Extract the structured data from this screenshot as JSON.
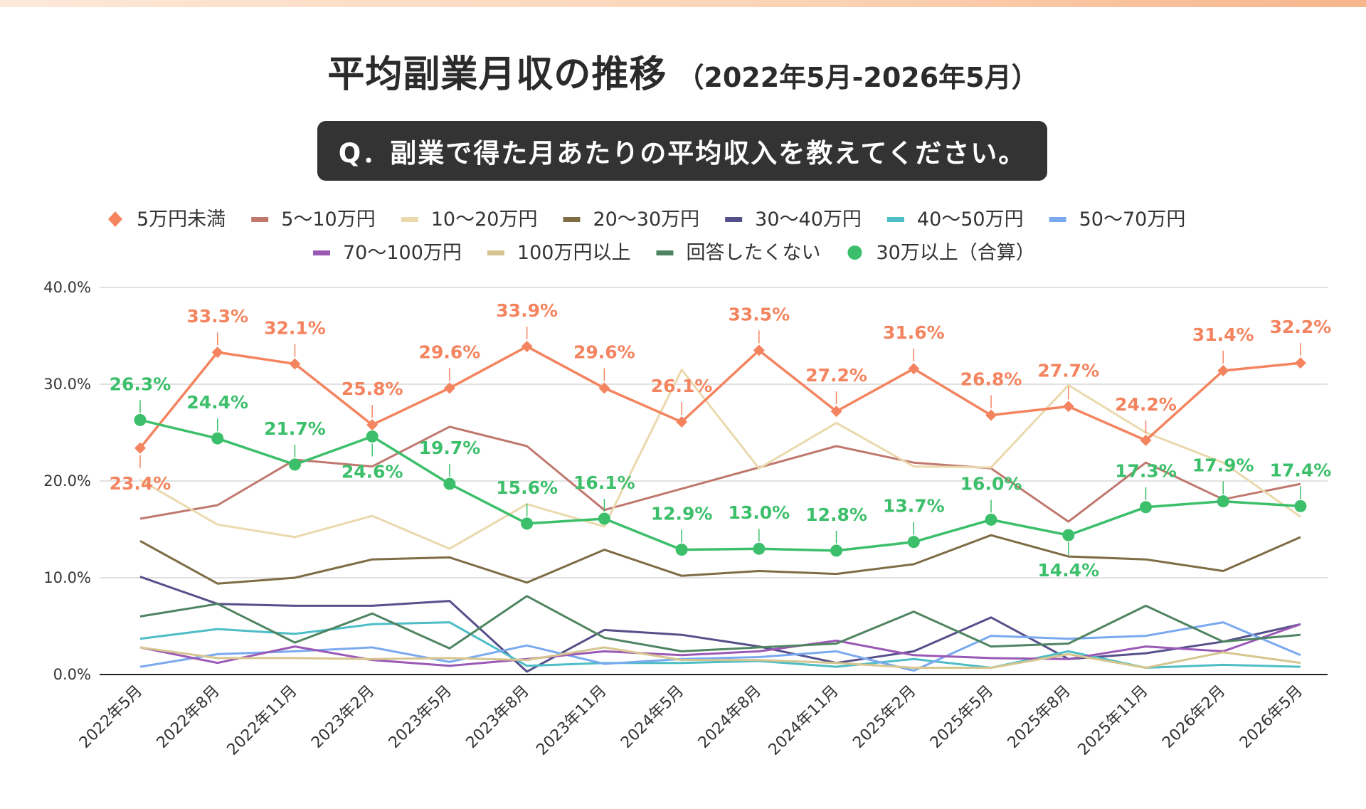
{
  "title": {
    "main": "平均副業月収の推移",
    "sub": "（2022年5月-2026年5月）"
  },
  "question": "Q．副業で得た月あたりの平均収入を教えてください。",
  "chart_data": {
    "type": "line",
    "categories": [
      "2022年5月",
      "2022年8月",
      "2022年11月",
      "2023年2月",
      "2023年5月",
      "2023年8月",
      "2023年11月",
      "2024年5月",
      "2024年8月",
      "2024年11月",
      "2025年2月",
      "2025年5月",
      "2025年8月",
      "2025年11月",
      "2026年2月",
      "2026年5月"
    ],
    "ylim": [
      0,
      40
    ],
    "yticks": [
      "0.0%",
      "10.0%",
      "20.0%",
      "30.0%",
      "40.0%"
    ],
    "grid": true,
    "legend_position": "top",
    "series": [
      {
        "name": "5万円未満",
        "color": "#f4845f",
        "marker": "diamond",
        "labeled": true,
        "values": [
          23.4,
          33.3,
          32.1,
          25.8,
          29.6,
          33.9,
          29.6,
          26.1,
          33.5,
          27.2,
          31.6,
          26.8,
          27.7,
          24.2,
          31.4,
          32.2
        ],
        "labels": [
          "23.4%",
          "33.3%",
          "32.1%",
          "25.8%",
          "29.6%",
          "33.9%",
          "29.6%",
          "26.1%",
          "33.5%",
          "27.2%",
          "31.6%",
          "26.8%",
          "27.7%",
          "24.2%",
          "31.4%",
          "32.2%"
        ]
      },
      {
        "name": "5〜10万円",
        "color": "#c0786e",
        "marker": "none",
        "values": [
          16.1,
          17.5,
          22.2,
          21.5,
          25.6,
          23.6,
          17.0,
          19.2,
          21.4,
          23.6,
          21.9,
          21.3,
          15.8,
          21.9,
          18.1,
          19.7
        ]
      },
      {
        "name": "10〜20万円",
        "color": "#ead9ad",
        "marker": "none",
        "values": [
          20.1,
          15.5,
          14.2,
          16.4,
          13.0,
          17.6,
          15.3,
          31.5,
          21.3,
          26.0,
          21.5,
          21.4,
          29.9,
          25.0,
          21.9,
          16.3
        ]
      },
      {
        "name": "20〜30万円",
        "color": "#7d6c44",
        "marker": "none",
        "values": [
          13.8,
          9.4,
          10.0,
          11.9,
          12.1,
          9.5,
          12.9,
          10.2,
          10.7,
          10.4,
          11.4,
          14.4,
          12.2,
          11.9,
          10.7,
          14.2
        ]
      },
      {
        "name": "30〜40万円",
        "color": "#55508a",
        "marker": "none",
        "values": [
          10.1,
          7.3,
          7.1,
          7.1,
          7.6,
          0.3,
          4.6,
          4.1,
          2.9,
          1.2,
          2.4,
          5.9,
          1.6,
          2.2,
          3.4,
          5.2
        ]
      },
      {
        "name": "40〜50万円",
        "color": "#4dbdc6",
        "marker": "none",
        "values": [
          3.7,
          4.7,
          4.2,
          5.2,
          5.4,
          0.9,
          1.2,
          1.2,
          1.4,
          0.8,
          1.6,
          0.7,
          2.4,
          0.7,
          1.0,
          0.8
        ]
      },
      {
        "name": "50〜70万円",
        "color": "#7aa9f0",
        "marker": "none",
        "values": [
          0.8,
          2.1,
          2.4,
          2.8,
          1.3,
          3.0,
          1.1,
          1.6,
          1.8,
          2.4,
          0.4,
          4.0,
          3.7,
          4.0,
          5.4,
          2.0
        ]
      },
      {
        "name": "70〜100万円",
        "color": "#9b59b6",
        "marker": "none",
        "values": [
          2.8,
          1.2,
          2.9,
          1.5,
          0.9,
          1.6,
          2.4,
          2.0,
          2.4,
          3.5,
          2.0,
          1.7,
          1.6,
          2.9,
          2.4,
          5.2
        ]
      },
      {
        "name": "100万円以上",
        "color": "#d6c58f",
        "marker": "none",
        "values": [
          2.8,
          1.7,
          1.7,
          1.6,
          1.7,
          1.5,
          2.8,
          1.5,
          1.5,
          1.2,
          0.7,
          0.7,
          2.1,
          0.7,
          2.3,
          1.2
        ]
      },
      {
        "name": "回答したくない",
        "color": "#4f8461",
        "marker": "none",
        "values": [
          6.0,
          7.3,
          3.3,
          6.3,
          2.7,
          8.1,
          3.8,
          2.4,
          2.8,
          3.2,
          6.5,
          2.9,
          3.2,
          7.1,
          3.4,
          4.1
        ]
      },
      {
        "name": "30万以上（合算）",
        "color": "#3cbf6a",
        "marker": "circle",
        "labeled": true,
        "values": [
          26.3,
          24.4,
          21.7,
          24.6,
          19.7,
          15.6,
          16.1,
          12.9,
          13.0,
          12.8,
          13.7,
          16.0,
          14.4,
          17.3,
          17.9,
          17.4
        ],
        "labels": [
          "26.3%",
          "24.4%",
          "21.7%",
          "24.6%",
          "19.7%",
          "15.6%",
          "16.1%",
          "12.9%",
          "13.0%",
          "12.8%",
          "13.7%",
          "16.0%",
          "14.4%",
          "17.3%",
          "17.9%",
          "17.4%"
        ]
      }
    ]
  }
}
